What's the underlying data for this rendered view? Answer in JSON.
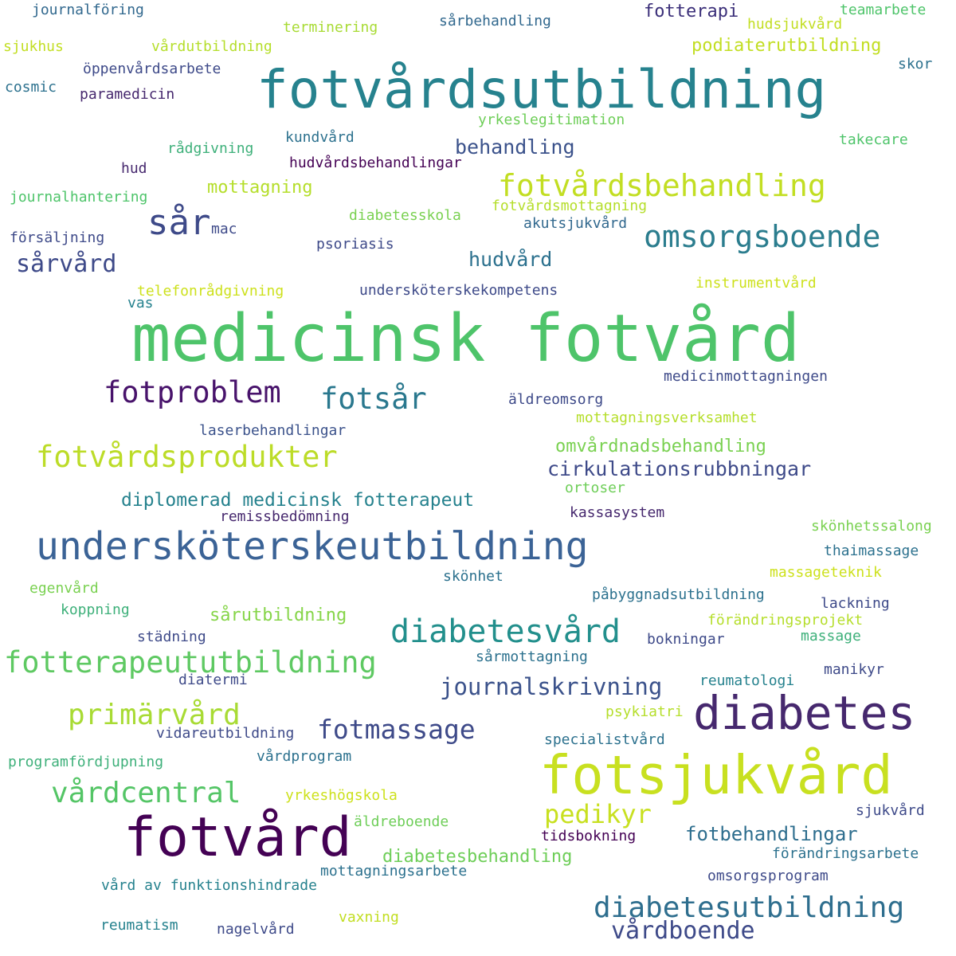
{
  "palette": {
    "dark_purple": "#440154",
    "indigo": "#3b2f79",
    "slate_blue": "#3e4a89",
    "steel_blue": "#31688e",
    "teal": "#26828e",
    "sea_green": "#1f9e89",
    "green": "#35b779",
    "light_green": "#6ece58",
    "yellow_green": "#b5de2b",
    "yellow": "#cde11d"
  },
  "words": [
    {
      "text": "medicinsk fotvård",
      "color": "#4ec46a"
    },
    {
      "text": "fotvårdsutbildning",
      "color": "#26828e"
    },
    {
      "text": "fotsjukvård",
      "color": "#c8e020"
    },
    {
      "text": "undersköterskeutbildning",
      "color": "#3b6396"
    },
    {
      "text": "fotvård",
      "color": "#440154"
    },
    {
      "text": "diabetes",
      "color": "#46286e"
    },
    {
      "text": "sår",
      "color": "#3e4a89"
    },
    {
      "text": "omsorgsboende",
      "color": "#2b7d8e"
    },
    {
      "text": "fotvårdsbehandling",
      "color": "#c2de22"
    },
    {
      "text": "fotproblem",
      "color": "#48136b"
    },
    {
      "text": "fotsår",
      "color": "#2a788e"
    },
    {
      "text": "fotvårdsprodukter",
      "color": "#bcdc28"
    },
    {
      "text": "diabetesvård",
      "color": "#228f8c"
    },
    {
      "text": "fotterapeututbildning",
      "color": "#5ec962"
    },
    {
      "text": "diabetesutbildning",
      "color": "#2e6e8e"
    },
    {
      "text": "vårdcentral",
      "color": "#54c566"
    },
    {
      "text": "primärvård",
      "color": "#a8db34"
    },
    {
      "text": "fotmassage",
      "color": "#3e4a89"
    },
    {
      "text": "pedikyr",
      "color": "#c8e020"
    },
    {
      "text": "vårdboende",
      "color": "#3e4a89"
    },
    {
      "text": "sårvård",
      "color": "#3e4a89"
    },
    {
      "text": "journalskrivning",
      "color": "#3b528b"
    },
    {
      "text": "cirkulationsrubbningar",
      "color": "#3e4a89"
    },
    {
      "text": "hudvård",
      "color": "#2c718e"
    },
    {
      "text": "behandling",
      "color": "#3b528b"
    },
    {
      "text": "fotbehandlingar",
      "color": "#2e6e8e"
    },
    {
      "text": "diplomerad medicinsk fotterapeut",
      "color": "#26828e"
    },
    {
      "text": "omvårdnadsbehandling",
      "color": "#7ad151"
    },
    {
      "text": "mottagning",
      "color": "#b5de2b"
    },
    {
      "text": "diabetesbehandling",
      "color": "#6ece58"
    },
    {
      "text": "fotterapi",
      "color": "#3b2f79"
    },
    {
      "text": "podiaterutbildning",
      "color": "#c2de22"
    },
    {
      "text": "sårutbildning",
      "color": "#86d549"
    },
    {
      "text": "journalföring",
      "color": "#31688e"
    },
    {
      "text": "sjukhus",
      "color": "#c2de22"
    },
    {
      "text": "vårdutbildning",
      "color": "#b5de2b"
    },
    {
      "text": "terminering",
      "color": "#a8db34"
    },
    {
      "text": "sårbehandling",
      "color": "#31688e"
    },
    {
      "text": "hudsjukvård",
      "color": "#c2de22"
    },
    {
      "text": "teamarbete",
      "color": "#4ec46a"
    },
    {
      "text": "skor",
      "color": "#2c718e"
    },
    {
      "text": "cosmic",
      "color": "#2c718e"
    },
    {
      "text": "öppenvårdsarbete",
      "color": "#3e4a89"
    },
    {
      "text": "paramedicin",
      "color": "#46286e"
    },
    {
      "text": "yrkeslegitimation",
      "color": "#6ece58"
    },
    {
      "text": "kundvård",
      "color": "#2c718e"
    },
    {
      "text": "rådgivning",
      "color": "#3eb07a"
    },
    {
      "text": "takecare",
      "color": "#4ec46a"
    },
    {
      "text": "hud",
      "color": "#46286e"
    },
    {
      "text": "hudvårdsbehandlingar",
      "color": "#440154"
    },
    {
      "text": "journalhantering",
      "color": "#4ec46a"
    },
    {
      "text": "mac",
      "color": "#3e4a89"
    },
    {
      "text": "diabetesskola",
      "color": "#7ad151"
    },
    {
      "text": "fotvårdsmottagning",
      "color": "#b5de2b"
    },
    {
      "text": "akutsjukvård",
      "color": "#31688e"
    },
    {
      "text": "försäljning",
      "color": "#3e4a89"
    },
    {
      "text": "psoriasis",
      "color": "#3e4a89"
    },
    {
      "text": "telefonrådgivning",
      "color": "#cde11d"
    },
    {
      "text": "vas",
      "color": "#26828e"
    },
    {
      "text": "undersköterskekompetens",
      "color": "#3e4a89"
    },
    {
      "text": "instrumentvård",
      "color": "#cde11d"
    },
    {
      "text": "medicinmottagningen",
      "color": "#3e4a89"
    },
    {
      "text": "äldreomsorg",
      "color": "#3e4a89"
    },
    {
      "text": "mottagningsverksamhet",
      "color": "#b5de2b"
    },
    {
      "text": "laserbehandlingar",
      "color": "#3b528b"
    },
    {
      "text": "ortoser",
      "color": "#6ece58"
    },
    {
      "text": "remissbedömning",
      "color": "#46286e"
    },
    {
      "text": "kassasystem",
      "color": "#46286e"
    },
    {
      "text": "skönhetssalong",
      "color": "#7ad151"
    },
    {
      "text": "thaimassage",
      "color": "#2c718e"
    },
    {
      "text": "massageteknik",
      "color": "#cde11d"
    },
    {
      "text": "skönhet",
      "color": "#2c718e"
    },
    {
      "text": "egenvård",
      "color": "#7ad151"
    },
    {
      "text": "påbyggnadsutbildning",
      "color": "#2c718e"
    },
    {
      "text": "lackning",
      "color": "#3e4a89"
    },
    {
      "text": "koppning",
      "color": "#3eb07a"
    },
    {
      "text": "förändringsprojekt",
      "color": "#b5de2b"
    },
    {
      "text": "städning",
      "color": "#3e4a89"
    },
    {
      "text": "bokningar",
      "color": "#3e4a89"
    },
    {
      "text": "massage",
      "color": "#3eb07a"
    },
    {
      "text": "sårmottagning",
      "color": "#2c718e"
    },
    {
      "text": "diatermi",
      "color": "#3e4a89"
    },
    {
      "text": "reumatologi",
      "color": "#26828e"
    },
    {
      "text": "manikyr",
      "color": "#3e4a89"
    },
    {
      "text": "psykiatri",
      "color": "#b5de2b"
    },
    {
      "text": "vidareutbildning",
      "color": "#3e4a89"
    },
    {
      "text": "specialistvård",
      "color": "#2c718e"
    },
    {
      "text": "programfördjupning",
      "color": "#3eb07a"
    },
    {
      "text": "vårdprogram",
      "color": "#2c718e"
    },
    {
      "text": "yrkeshögskola",
      "color": "#cde11d"
    },
    {
      "text": "sjukvård",
      "color": "#3e4a89"
    },
    {
      "text": "äldreboende",
      "color": "#6ece58"
    },
    {
      "text": "tidsbokning",
      "color": "#440154"
    },
    {
      "text": "förändringsarbete",
      "color": "#2c718e"
    },
    {
      "text": "mottagningsarbete",
      "color": "#2c718e"
    },
    {
      "text": "omsorgsprogram",
      "color": "#3e4a89"
    },
    {
      "text": "vård av funktionshindrade",
      "color": "#26828e"
    },
    {
      "text": "reumatism",
      "color": "#26828e"
    },
    {
      "text": "nagelvård",
      "color": "#3e4a89"
    },
    {
      "text": "vaxning",
      "color": "#c2de22"
    }
  ]
}
